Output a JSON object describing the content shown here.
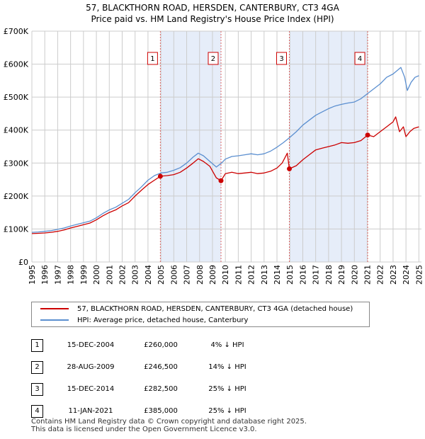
{
  "title": {
    "line1": "57, BLACKTHORN ROAD, HERSDEN, CANTERBURY, CT3 4GA",
    "line2": "Price paid vs. HM Land Registry's House Price Index (HPI)"
  },
  "legend": {
    "property": "57, BLACKTHORN ROAD, HERSDEN, CANTERBURY, CT3 4GA (detached house)",
    "hpi": "HPI: Average price, detached house, Canterbury"
  },
  "colors": {
    "property": "#cc0000",
    "hpi": "#5b8fd0",
    "shade": "#e6edf9",
    "grid": "#cccccc",
    "vline": "#dd6666"
  },
  "sales": [
    {
      "num": "1",
      "date": "15-DEC-2004",
      "price": "£260,000",
      "delta": "4% ↓ HPI"
    },
    {
      "num": "2",
      "date": "28-AUG-2009",
      "price": "£246,500",
      "delta": "14% ↓ HPI"
    },
    {
      "num": "3",
      "date": "15-DEC-2014",
      "price": "£282,500",
      "delta": "25% ↓ HPI"
    },
    {
      "num": "4",
      "date": "11-JAN-2021",
      "price": "£385,000",
      "delta": "25% ↓ HPI"
    }
  ],
  "footer": {
    "line1": "Contains HM Land Registry data © Crown copyright and database right 2025.",
    "line2": "This data is licensed under the Open Government Licence v3.0."
  },
  "chart_data": {
    "type": "line",
    "title": "57, BLACKTHORN ROAD, HERSDEN, CANTERBURY, CT3 4GA — Price paid vs. HM Land Registry's House Price Index (HPI)",
    "xlabel": "",
    "ylabel": "",
    "xlim": [
      1995,
      2025.2
    ],
    "ylim": [
      0,
      700000
    ],
    "grid": true,
    "legend_position": "bottom",
    "x_ticks": [
      "1995",
      "1996",
      "1997",
      "1998",
      "1999",
      "2000",
      "2001",
      "2002",
      "2003",
      "2004",
      "2005",
      "2006",
      "2007",
      "2008",
      "2009",
      "2010",
      "2011",
      "2012",
      "2013",
      "2014",
      "2015",
      "2016",
      "2017",
      "2018",
      "2019",
      "2020",
      "2021",
      "2022",
      "2023",
      "2024",
      "2025"
    ],
    "y_ticks": [
      {
        "value": 0,
        "label": "£0"
      },
      {
        "value": 100000,
        "label": "£100K"
      },
      {
        "value": 200000,
        "label": "£200K"
      },
      {
        "value": 300000,
        "label": "£300K"
      },
      {
        "value": 400000,
        "label": "£400K"
      },
      {
        "value": 500000,
        "label": "£500K"
      },
      {
        "value": 600000,
        "label": "£600K"
      },
      {
        "value": 700000,
        "label": "£700K"
      }
    ],
    "shaded_periods": [
      [
        2004.96,
        2009.66
      ],
      [
        2014.96,
        2021.03
      ]
    ],
    "sale_markers": [
      {
        "label": "1",
        "x": 2004.96,
        "y": 260000
      },
      {
        "label": "2",
        "x": 2009.66,
        "y": 246500
      },
      {
        "label": "3",
        "x": 2014.96,
        "y": 282500
      },
      {
        "label": "4",
        "x": 2021.03,
        "y": 385000
      }
    ],
    "series": [
      {
        "name": "57, BLACKTHORN ROAD, HERSDEN, CANTERBURY, CT3 4GA (detached house)",
        "color": "#cc0000",
        "x": [
          1995.0,
          1995.5,
          1996.0,
          1996.5,
          1997.0,
          1997.5,
          1998.0,
          1998.5,
          1999.0,
          1999.5,
          2000.0,
          2000.5,
          2001.0,
          2001.5,
          2002.0,
          2002.5,
          2003.0,
          2003.5,
          2004.0,
          2004.5,
          2004.96,
          2005.5,
          2006.0,
          2006.5,
          2007.0,
          2007.5,
          2007.9,
          2008.3,
          2008.8,
          2009.3,
          2009.66,
          2010.0,
          2010.5,
          2011.0,
          2011.5,
          2012.0,
          2012.5,
          2013.0,
          2013.5,
          2014.0,
          2014.4,
          2014.8,
          2014.96,
          2015.5,
          2016.0,
          2016.5,
          2017.0,
          2017.5,
          2018.0,
          2018.5,
          2019.0,
          2019.5,
          2020.0,
          2020.5,
          2021.03,
          2021.5,
          2022.0,
          2022.5,
          2023.0,
          2023.2,
          2023.5,
          2023.8,
          2024.0,
          2024.3,
          2024.6,
          2025.0
        ],
        "values": [
          86000,
          87000,
          88000,
          90000,
          93000,
          97000,
          103000,
          108000,
          113000,
          118000,
          128000,
          140000,
          150000,
          158000,
          170000,
          180000,
          200000,
          218000,
          235000,
          248000,
          260000,
          262000,
          265000,
          272000,
          285000,
          300000,
          313000,
          305000,
          290000,
          255000,
          246500,
          268000,
          272000,
          268000,
          270000,
          272000,
          268000,
          270000,
          275000,
          285000,
          300000,
          330000,
          282500,
          292000,
          310000,
          325000,
          340000,
          345000,
          350000,
          355000,
          362000,
          360000,
          362000,
          368000,
          385000,
          380000,
          395000,
          410000,
          425000,
          440000,
          395000,
          410000,
          380000,
          395000,
          405000,
          410000
        ]
      },
      {
        "name": "HPI: Average price, detached house, Canterbury",
        "color": "#5b8fd0",
        "x": [
          1995.0,
          1995.5,
          1996.0,
          1996.5,
          1997.0,
          1997.5,
          1998.0,
          1998.5,
          1999.0,
          1999.5,
          2000.0,
          2000.5,
          2001.0,
          2001.5,
          2002.0,
          2002.5,
          2003.0,
          2003.5,
          2004.0,
          2004.5,
          2005.0,
          2005.5,
          2006.0,
          2006.5,
          2007.0,
          2007.5,
          2007.9,
          2008.3,
          2008.8,
          2009.3,
          2009.7,
          2010.0,
          2010.5,
          2011.0,
          2011.5,
          2012.0,
          2012.5,
          2013.0,
          2013.5,
          2014.0,
          2014.5,
          2015.0,
          2015.5,
          2016.0,
          2016.5,
          2017.0,
          2017.5,
          2018.0,
          2018.5,
          2019.0,
          2019.5,
          2020.0,
          2020.5,
          2021.0,
          2021.5,
          2022.0,
          2022.5,
          2023.0,
          2023.3,
          2023.6,
          2023.9,
          2024.1,
          2024.4,
          2024.7,
          2025.0
        ],
        "values": [
          90000,
          91000,
          93000,
          95000,
          99000,
          103000,
          109000,
          114000,
          119000,
          124000,
          134000,
          147000,
          158000,
          166000,
          178000,
          190000,
          210000,
          228000,
          248000,
          262000,
          270000,
          272000,
          278000,
          286000,
          300000,
          318000,
          330000,
          322000,
          305000,
          288000,
          300000,
          312000,
          320000,
          322000,
          325000,
          328000,
          325000,
          328000,
          336000,
          348000,
          362000,
          378000,
          395000,
          415000,
          430000,
          445000,
          455000,
          465000,
          473000,
          478000,
          482000,
          485000,
          495000,
          510000,
          525000,
          540000,
          560000,
          570000,
          580000,
          590000,
          560000,
          520000,
          545000,
          560000,
          565000
        ]
      }
    ]
  }
}
